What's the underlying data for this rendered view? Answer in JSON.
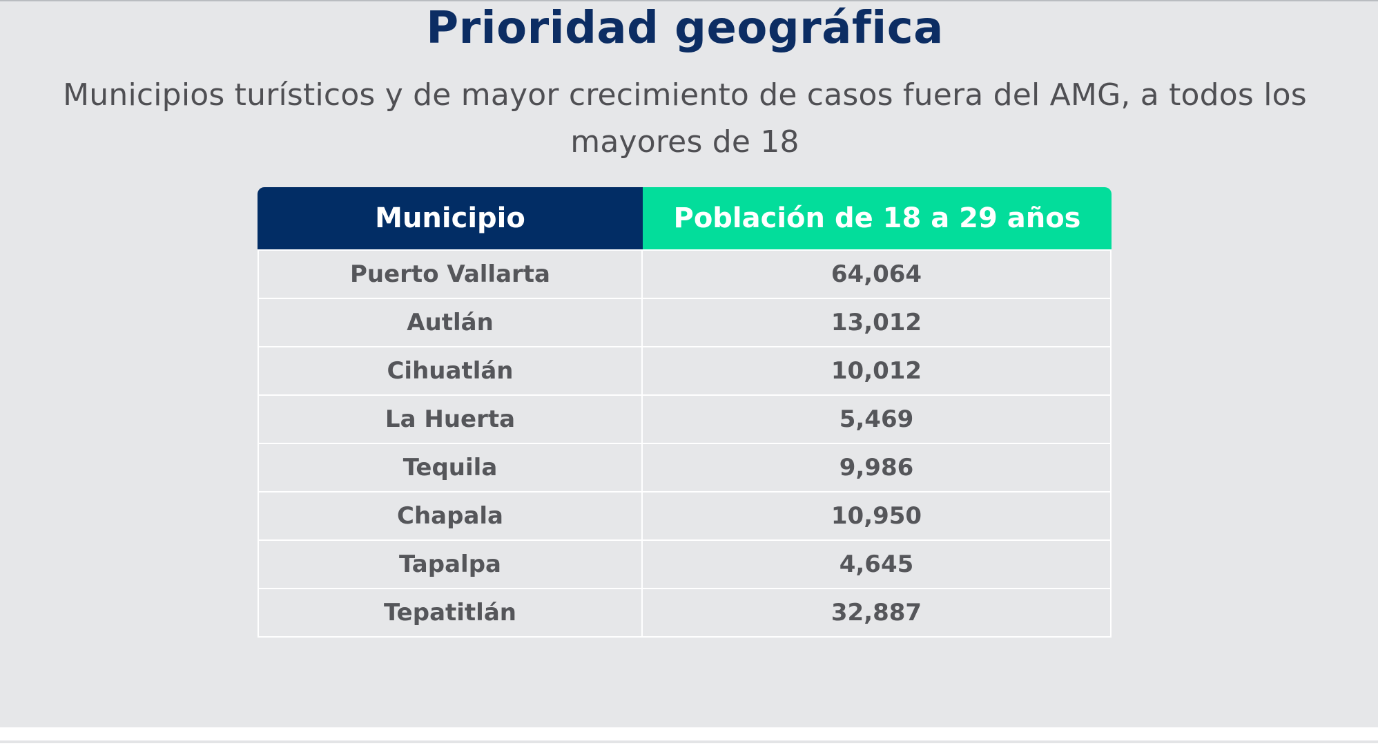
{
  "title": "Prioridad geográfica",
  "subtitle_line1": "Municipios turísticos y de mayor crecimiento de casos fuera del AMG, a todos los",
  "subtitle_line2": "mayores de 18",
  "table": {
    "headers": [
      "Municipio",
      "Población de 18 a 29 años"
    ],
    "header_colors": [
      "#022d65",
      "#03dd9b"
    ],
    "rows": [
      [
        "Puerto Vallarta",
        "64,064"
      ],
      [
        "Autlán",
        "13,012"
      ],
      [
        "Cihuatlán",
        "10,012"
      ],
      [
        "La Huerta",
        "5,469"
      ],
      [
        "Tequila",
        "9,986"
      ],
      [
        "Chapala",
        "10,950"
      ],
      [
        "Tapalpa",
        "4,645"
      ],
      [
        "Tepatitlán",
        "32,887"
      ]
    ]
  },
  "colors": {
    "title": "#0c2d63",
    "text": "#55565a",
    "background": "#e6e7e9"
  }
}
